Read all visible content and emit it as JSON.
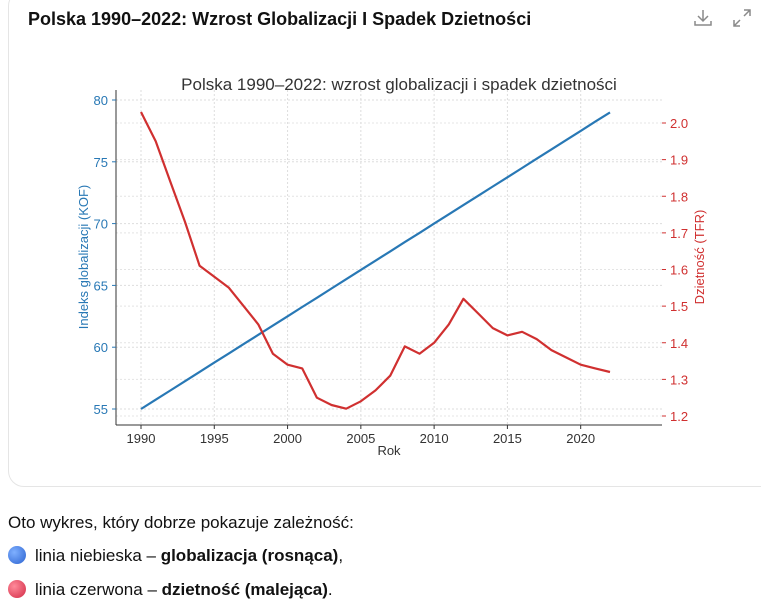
{
  "card": {
    "title": "Polska 1990–2022: Wzrost Globalizacji I Spadek Dzietności",
    "download_icon": "download-icon",
    "expand_icon": "expand-icon"
  },
  "chart_data": {
    "type": "line",
    "title": "Polska 1990–2022: wzrost globalizacji i spadek dzietności",
    "xlabel": "Rok",
    "ylabel_left": "Indeks globalizacji (KOF)",
    "ylabel_right": "Dzietność (TFR)",
    "xlim": [
      1990,
      2022
    ],
    "ylim_left": [
      55,
      80
    ],
    "ylim_right": [
      1.2,
      2.05
    ],
    "x_ticks": [
      "1990",
      "1995",
      "2000",
      "2005",
      "2010",
      "2015",
      "2020"
    ],
    "y_left_ticks": [
      "55",
      "60",
      "65",
      "70",
      "75",
      "80"
    ],
    "y_right_ticks": [
      "1.2",
      "1.3",
      "1.4",
      "1.5",
      "1.6",
      "1.7",
      "1.8",
      "1.9",
      "2.0"
    ],
    "grid": true,
    "colors": {
      "left": "#2878b5",
      "right": "#d03030"
    },
    "x": [
      1990,
      1991,
      1992,
      1993,
      1994,
      1995,
      1996,
      1997,
      1998,
      1999,
      2000,
      2001,
      2002,
      2003,
      2004,
      2005,
      2006,
      2007,
      2008,
      2009,
      2010,
      2011,
      2012,
      2013,
      2014,
      2015,
      2016,
      2017,
      2018,
      2019,
      2020,
      2021,
      2022
    ],
    "series": [
      {
        "axis": "left",
        "values": [
          55,
          55.75,
          56.5,
          57.25,
          58,
          58.75,
          59.5,
          60.25,
          61,
          61.75,
          62.5,
          63.25,
          64,
          64.75,
          65.5,
          66.25,
          67,
          67.75,
          68.5,
          69.25,
          70,
          70.75,
          71.5,
          72.25,
          73,
          73.75,
          74.5,
          75.25,
          76,
          76.75,
          77.5,
          78.25,
          79
        ]
      },
      {
        "axis": "right",
        "values": [
          2.03,
          1.95,
          1.84,
          1.73,
          1.61,
          1.58,
          1.55,
          1.5,
          1.45,
          1.37,
          1.34,
          1.33,
          1.25,
          1.23,
          1.22,
          1.24,
          1.27,
          1.31,
          1.39,
          1.37,
          1.4,
          1.45,
          1.52,
          1.48,
          1.44,
          1.42,
          1.43,
          1.41,
          1.38,
          1.36,
          1.34,
          1.33,
          1.32
        ]
      }
    ]
  },
  "body": {
    "intro": "Oto wykres, który dobrze pokazuje zależność:",
    "item1_plain": "linia niebieska – ",
    "item1_bold": "globalizacja (rosnąca)",
    "item1_end": ",",
    "item2_plain": "linia czerwona – ",
    "item2_bold": "dzietność (malejąca)",
    "item2_end": "."
  }
}
